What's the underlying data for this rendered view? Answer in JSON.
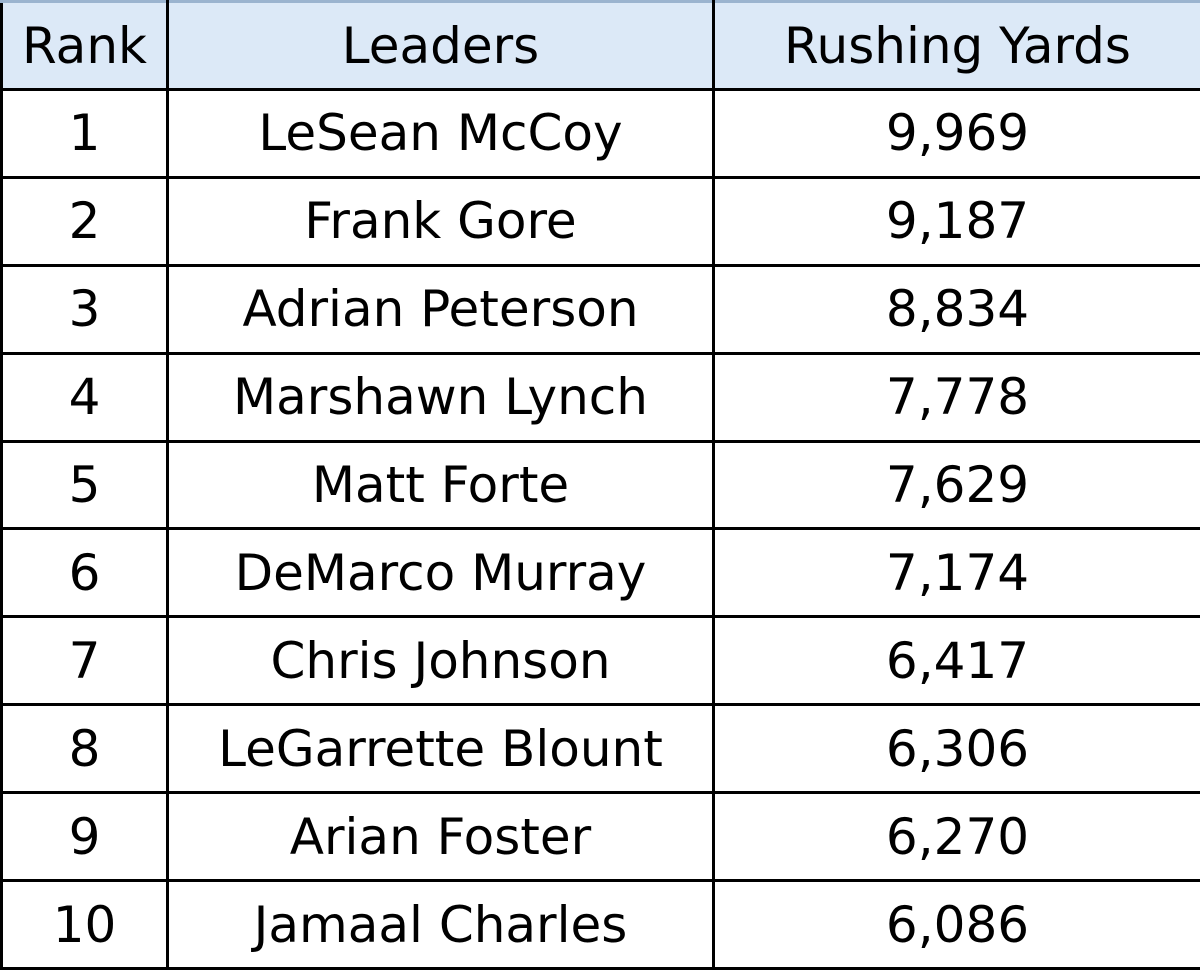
{
  "table": {
    "headers": {
      "rank": "Rank",
      "leaders": "Leaders",
      "yards": "Rushing Yards"
    },
    "rows": [
      {
        "rank": "1",
        "name": "LeSean McCoy",
        "yards": "9,969"
      },
      {
        "rank": "2",
        "name": "Frank Gore",
        "yards": "9,187"
      },
      {
        "rank": "3",
        "name": "Adrian Peterson",
        "yards": "8,834"
      },
      {
        "rank": "4",
        "name": "Marshawn Lynch",
        "yards": "7,778"
      },
      {
        "rank": "5",
        "name": "Matt Forte",
        "yards": "7,629"
      },
      {
        "rank": "6",
        "name": "DeMarco Murray",
        "yards": "7,174"
      },
      {
        "rank": "7",
        "name": "Chris Johnson",
        "yards": "6,417"
      },
      {
        "rank": "8",
        "name": "LeGarrette Blount",
        "yards": "6,306"
      },
      {
        "rank": "9",
        "name": "Arian Foster",
        "yards": "6,270"
      },
      {
        "rank": "10",
        "name": "Jamaal Charles",
        "yards": "6,086"
      }
    ]
  },
  "colors": {
    "header_background": "#dce9f7",
    "border": "#000000",
    "cell_background": "#ffffff"
  }
}
